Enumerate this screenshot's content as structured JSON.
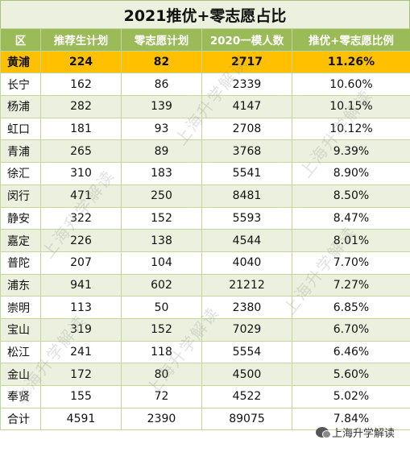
{
  "title": "2021推优+零志愿占比",
  "headers": [
    "区",
    "推荐生计划",
    "零志愿计划",
    "2020一模人数",
    "推优+零志愿比例"
  ],
  "rows": [
    {
      "region": "黄浦",
      "a": "224",
      "b": "82",
      "c": "2717",
      "d": "11.26%"
    },
    {
      "region": "长宁",
      "a": "162",
      "b": "86",
      "c": "2339",
      "d": "10.60%"
    },
    {
      "region": "杨浦",
      "a": "282",
      "b": "139",
      "c": "4147",
      "d": "10.15%"
    },
    {
      "region": "虹口",
      "a": "181",
      "b": "93",
      "c": "2708",
      "d": "10.12%"
    },
    {
      "region": "青浦",
      "a": "265",
      "b": "89",
      "c": "3768",
      "d": "9.39%"
    },
    {
      "region": "徐汇",
      "a": "310",
      "b": "183",
      "c": "5541",
      "d": "8.90%"
    },
    {
      "region": "闵行",
      "a": "471",
      "b": "250",
      "c": "8481",
      "d": "8.50%"
    },
    {
      "region": "静安",
      "a": "322",
      "b": "152",
      "c": "5593",
      "d": "8.47%"
    },
    {
      "region": "嘉定",
      "a": "226",
      "b": "138",
      "c": "4544",
      "d": "8.01%"
    },
    {
      "region": "普陀",
      "a": "207",
      "b": "104",
      "c": "4040",
      "d": "7.70%"
    },
    {
      "region": "浦东",
      "a": "941",
      "b": "602",
      "c": "21212",
      "d": "7.27%"
    },
    {
      "region": "崇明",
      "a": "113",
      "b": "50",
      "c": "2380",
      "d": "6.85%"
    },
    {
      "region": "宝山",
      "a": "319",
      "b": "152",
      "c": "7029",
      "d": "6.70%"
    },
    {
      "region": "松江",
      "a": "241",
      "b": "118",
      "c": "5554",
      "d": "6.46%"
    },
    {
      "region": "金山",
      "a": "172",
      "b": "80",
      "c": "4500",
      "d": "5.60%"
    },
    {
      "region": "奉贤",
      "a": "155",
      "b": "72",
      "c": "4522",
      "d": "5.02%"
    },
    {
      "region": "合计",
      "a": "4591",
      "b": "2390",
      "c": "89075",
      "d": "7.84%"
    }
  ],
  "watermark": "上海升学解读",
  "wechat_label": "上海升学解读",
  "colors": {
    "header_bg": "#9bbb59",
    "highlight_bg": "#ffc000",
    "alt_bg": "#ebf1de"
  }
}
